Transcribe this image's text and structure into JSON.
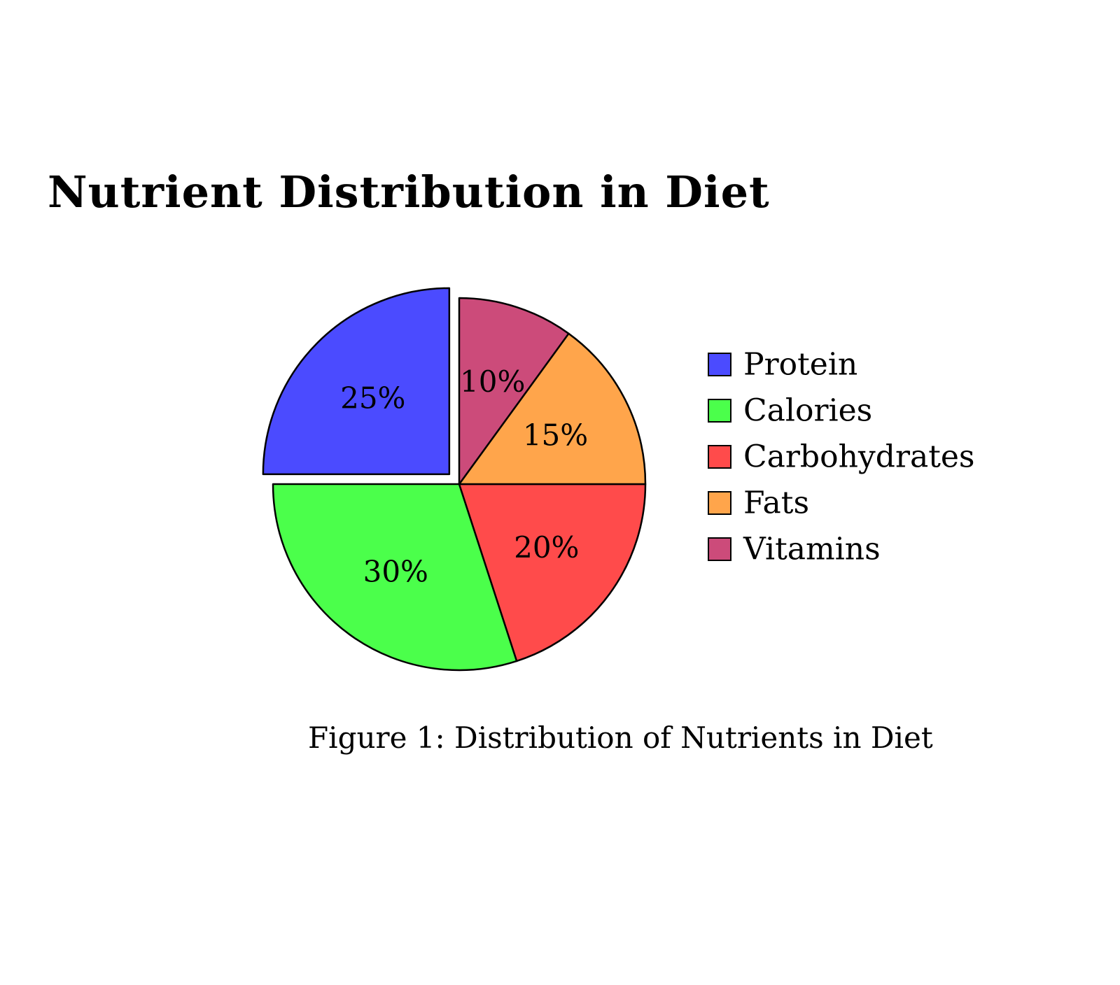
{
  "chart_data": {
    "type": "pie",
    "title": "Nutrient Distribution in Diet",
    "caption": "Figure 1: Distribution of Nutrients in Diet",
    "slices": [
      {
        "name": "Protein",
        "value": 25,
        "label": "25%",
        "color": "#4B4BFF",
        "exploded": true
      },
      {
        "name": "Calories",
        "value": 30,
        "label": "30%",
        "color": "#4BFF4B",
        "exploded": false
      },
      {
        "name": "Carbohydrates",
        "value": 20,
        "label": "20%",
        "color": "#FF4B4B",
        "exploded": false
      },
      {
        "name": "Fats",
        "value": 15,
        "label": "15%",
        "color": "#FFA54B",
        "exploded": false
      },
      {
        "name": "Vitamins",
        "value": 10,
        "label": "10%",
        "color": "#CC4B7A",
        "exploded": false
      }
    ],
    "legend_placement": "right"
  }
}
